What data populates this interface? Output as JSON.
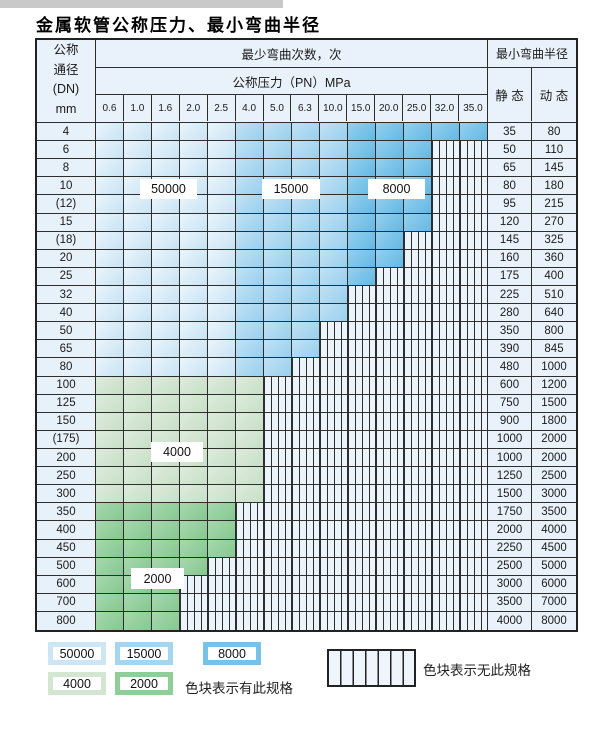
{
  "page": {
    "title": "金属软管公称压力、最小弯曲半径"
  },
  "table": {
    "corner": {
      "line1": "公称",
      "line2": "通径",
      "line3": "(DN)",
      "line4": "mm"
    },
    "cycles_header": "最少弯曲次数，次",
    "pressure_header": "公称压力（PN）MPa",
    "radius_header": "最小弯曲半径",
    "static_label": "静 态",
    "dynamic_label": "动 态",
    "pressure_columns": [
      "0.6",
      "1.0",
      "1.6",
      "2.0",
      "2.5",
      "4.0",
      "5.0",
      "6.3",
      "10.0",
      "15.0",
      "20.0",
      "25.0",
      "32.0",
      "35.0"
    ],
    "rows": [
      {
        "dn": "4",
        "colored": 14,
        "palette": "blue",
        "static": "35",
        "dynamic": "80"
      },
      {
        "dn": "6",
        "colored": 12,
        "palette": "blue",
        "static": "50",
        "dynamic": "110"
      },
      {
        "dn": "8",
        "colored": 12,
        "palette": "blue",
        "static": "65",
        "dynamic": "145"
      },
      {
        "dn": "10",
        "colored": 12,
        "palette": "blue",
        "static": "80",
        "dynamic": "180"
      },
      {
        "dn": "(12)",
        "colored": 12,
        "palette": "blue",
        "static": "95",
        "dynamic": "215"
      },
      {
        "dn": "15",
        "colored": 12,
        "palette": "blue",
        "static": "120",
        "dynamic": "270"
      },
      {
        "dn": "(18)",
        "colored": 11,
        "palette": "blue",
        "static": "145",
        "dynamic": "325"
      },
      {
        "dn": "20",
        "colored": 11,
        "palette": "blue",
        "static": "160",
        "dynamic": "360"
      },
      {
        "dn": "25",
        "colored": 10,
        "palette": "blue",
        "static": "175",
        "dynamic": "400"
      },
      {
        "dn": "32",
        "colored": 9,
        "palette": "blue",
        "static": "225",
        "dynamic": "510"
      },
      {
        "dn": "40",
        "colored": 9,
        "palette": "blue",
        "static": "280",
        "dynamic": "640"
      },
      {
        "dn": "50",
        "colored": 8,
        "palette": "blue",
        "static": "350",
        "dynamic": "800"
      },
      {
        "dn": "65",
        "colored": 8,
        "palette": "blue",
        "static": "390",
        "dynamic": "845"
      },
      {
        "dn": "80",
        "colored": 7,
        "palette": "blue",
        "static": "480",
        "dynamic": "1000"
      },
      {
        "dn": "100",
        "colored": 6,
        "palette": "green4000",
        "static": "600",
        "dynamic": "1200"
      },
      {
        "dn": "125",
        "colored": 6,
        "palette": "green4000",
        "static": "750",
        "dynamic": "1500"
      },
      {
        "dn": "150",
        "colored": 6,
        "palette": "green4000",
        "static": "900",
        "dynamic": "1800"
      },
      {
        "dn": "(175)",
        "colored": 6,
        "palette": "green4000",
        "static": "1000",
        "dynamic": "2000"
      },
      {
        "dn": "200",
        "colored": 6,
        "palette": "green4000",
        "static": "1000",
        "dynamic": "2000"
      },
      {
        "dn": "250",
        "colored": 6,
        "palette": "green4000",
        "static": "1250",
        "dynamic": "2500"
      },
      {
        "dn": "300",
        "colored": 6,
        "palette": "green4000",
        "static": "1500",
        "dynamic": "3000"
      },
      {
        "dn": "350",
        "colored": 5,
        "palette": "green2000",
        "static": "1750",
        "dynamic": "3500"
      },
      {
        "dn": "400",
        "colored": 5,
        "palette": "green2000",
        "static": "2000",
        "dynamic": "4000"
      },
      {
        "dn": "450",
        "colored": 5,
        "palette": "green2000",
        "static": "2250",
        "dynamic": "4500"
      },
      {
        "dn": "500",
        "colored": 4,
        "palette": "green2000",
        "static": "2500",
        "dynamic": "5000"
      },
      {
        "dn": "600",
        "colored": 3,
        "palette": "green2000",
        "static": "3000",
        "dynamic": "6000"
      },
      {
        "dn": "700",
        "colored": 3,
        "palette": "green2000",
        "static": "3500",
        "dynamic": "7000"
      },
      {
        "dn": "800",
        "colored": 3,
        "palette": "green2000",
        "static": "4000",
        "dynamic": "8000"
      }
    ]
  },
  "overlay_labels": {
    "b50000": "50000",
    "b15000": "15000",
    "b8000": "8000",
    "g4000": "4000",
    "g2000": "2000"
  },
  "legend": {
    "swatches": [
      {
        "value": "50000",
        "color": "#cde6f6"
      },
      {
        "value": "15000",
        "color": "#a5d6f0"
      },
      {
        "value": "8000",
        "color": "#76c2e9"
      },
      {
        "value": "4000",
        "color": "#d2e6d1"
      },
      {
        "value": "2000",
        "color": "#8fcd99"
      }
    ],
    "has_spec_text": "色块表示有此规格",
    "no_spec_text": "色块表示无此规格"
  },
  "colors": {
    "cycles_50000": "#d9ecf8",
    "cycles_15000": "#a5d6f0",
    "cycles_8000": "#76c2e9",
    "cycles_4000": "#d2e6d1",
    "cycles_2000": "#8fcd99",
    "no_spec_bg": "#ecf4fb",
    "header_bg": "#e9f2fa",
    "border": "#2e2e2e",
    "topbar_gray": "#c9c9c9"
  }
}
